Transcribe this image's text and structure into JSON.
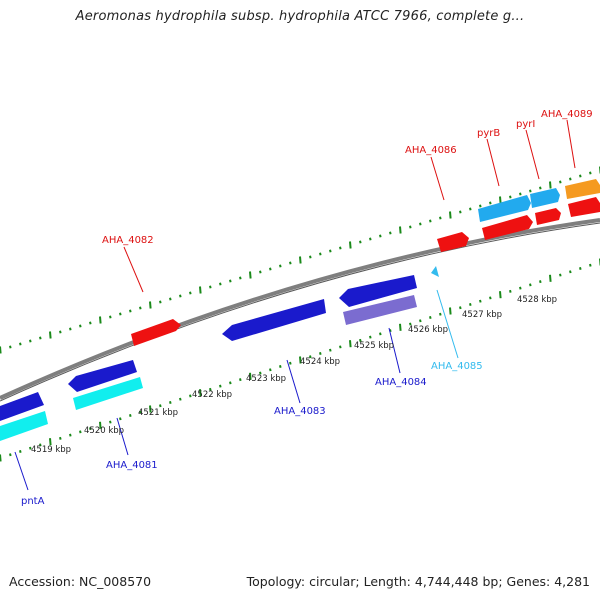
{
  "title": "Aeromonas hydrophila subsp. hydrophila ATCC 7966, complete g...",
  "footer": {
    "accession": "Accession: NC_008570",
    "topology": "Topology: circular; Length: 4,744,448 bp; Genes: 4,281"
  },
  "colors": {
    "backbone": "#7f7f7f",
    "tick": "#1a8a1a",
    "red": "#ee1111",
    "blue": "#1a1acc",
    "lavender": "#7b6cd0",
    "cyan": "#11eeee",
    "skyblue": "#22aaee",
    "orange": "#f59a20",
    "label_red": "#dd1111",
    "label_blue": "#1a1acc",
    "label_skyblue": "#33bbee"
  },
  "kbp_labels": [
    "4519 kbp",
    "4520 kbp",
    "4521 kbp",
    "4522 kbp",
    "4523 kbp",
    "4524 kbp",
    "4525 kbp",
    "4526 kbp",
    "4527 kbp",
    "4528 kbp"
  ],
  "gene_labels": {
    "aha_4082": "AHA_4082",
    "aha_4086": "AHA_4086",
    "pyrB": "pyrB",
    "pyrI": "pyrI",
    "aha_4089": "AHA_4089",
    "aha_4083": "AHA_4083",
    "aha_4084": "AHA_4084",
    "aha_4085": "AHA_4085",
    "aha_4081": "AHA_4081",
    "pntA": "pntA"
  }
}
